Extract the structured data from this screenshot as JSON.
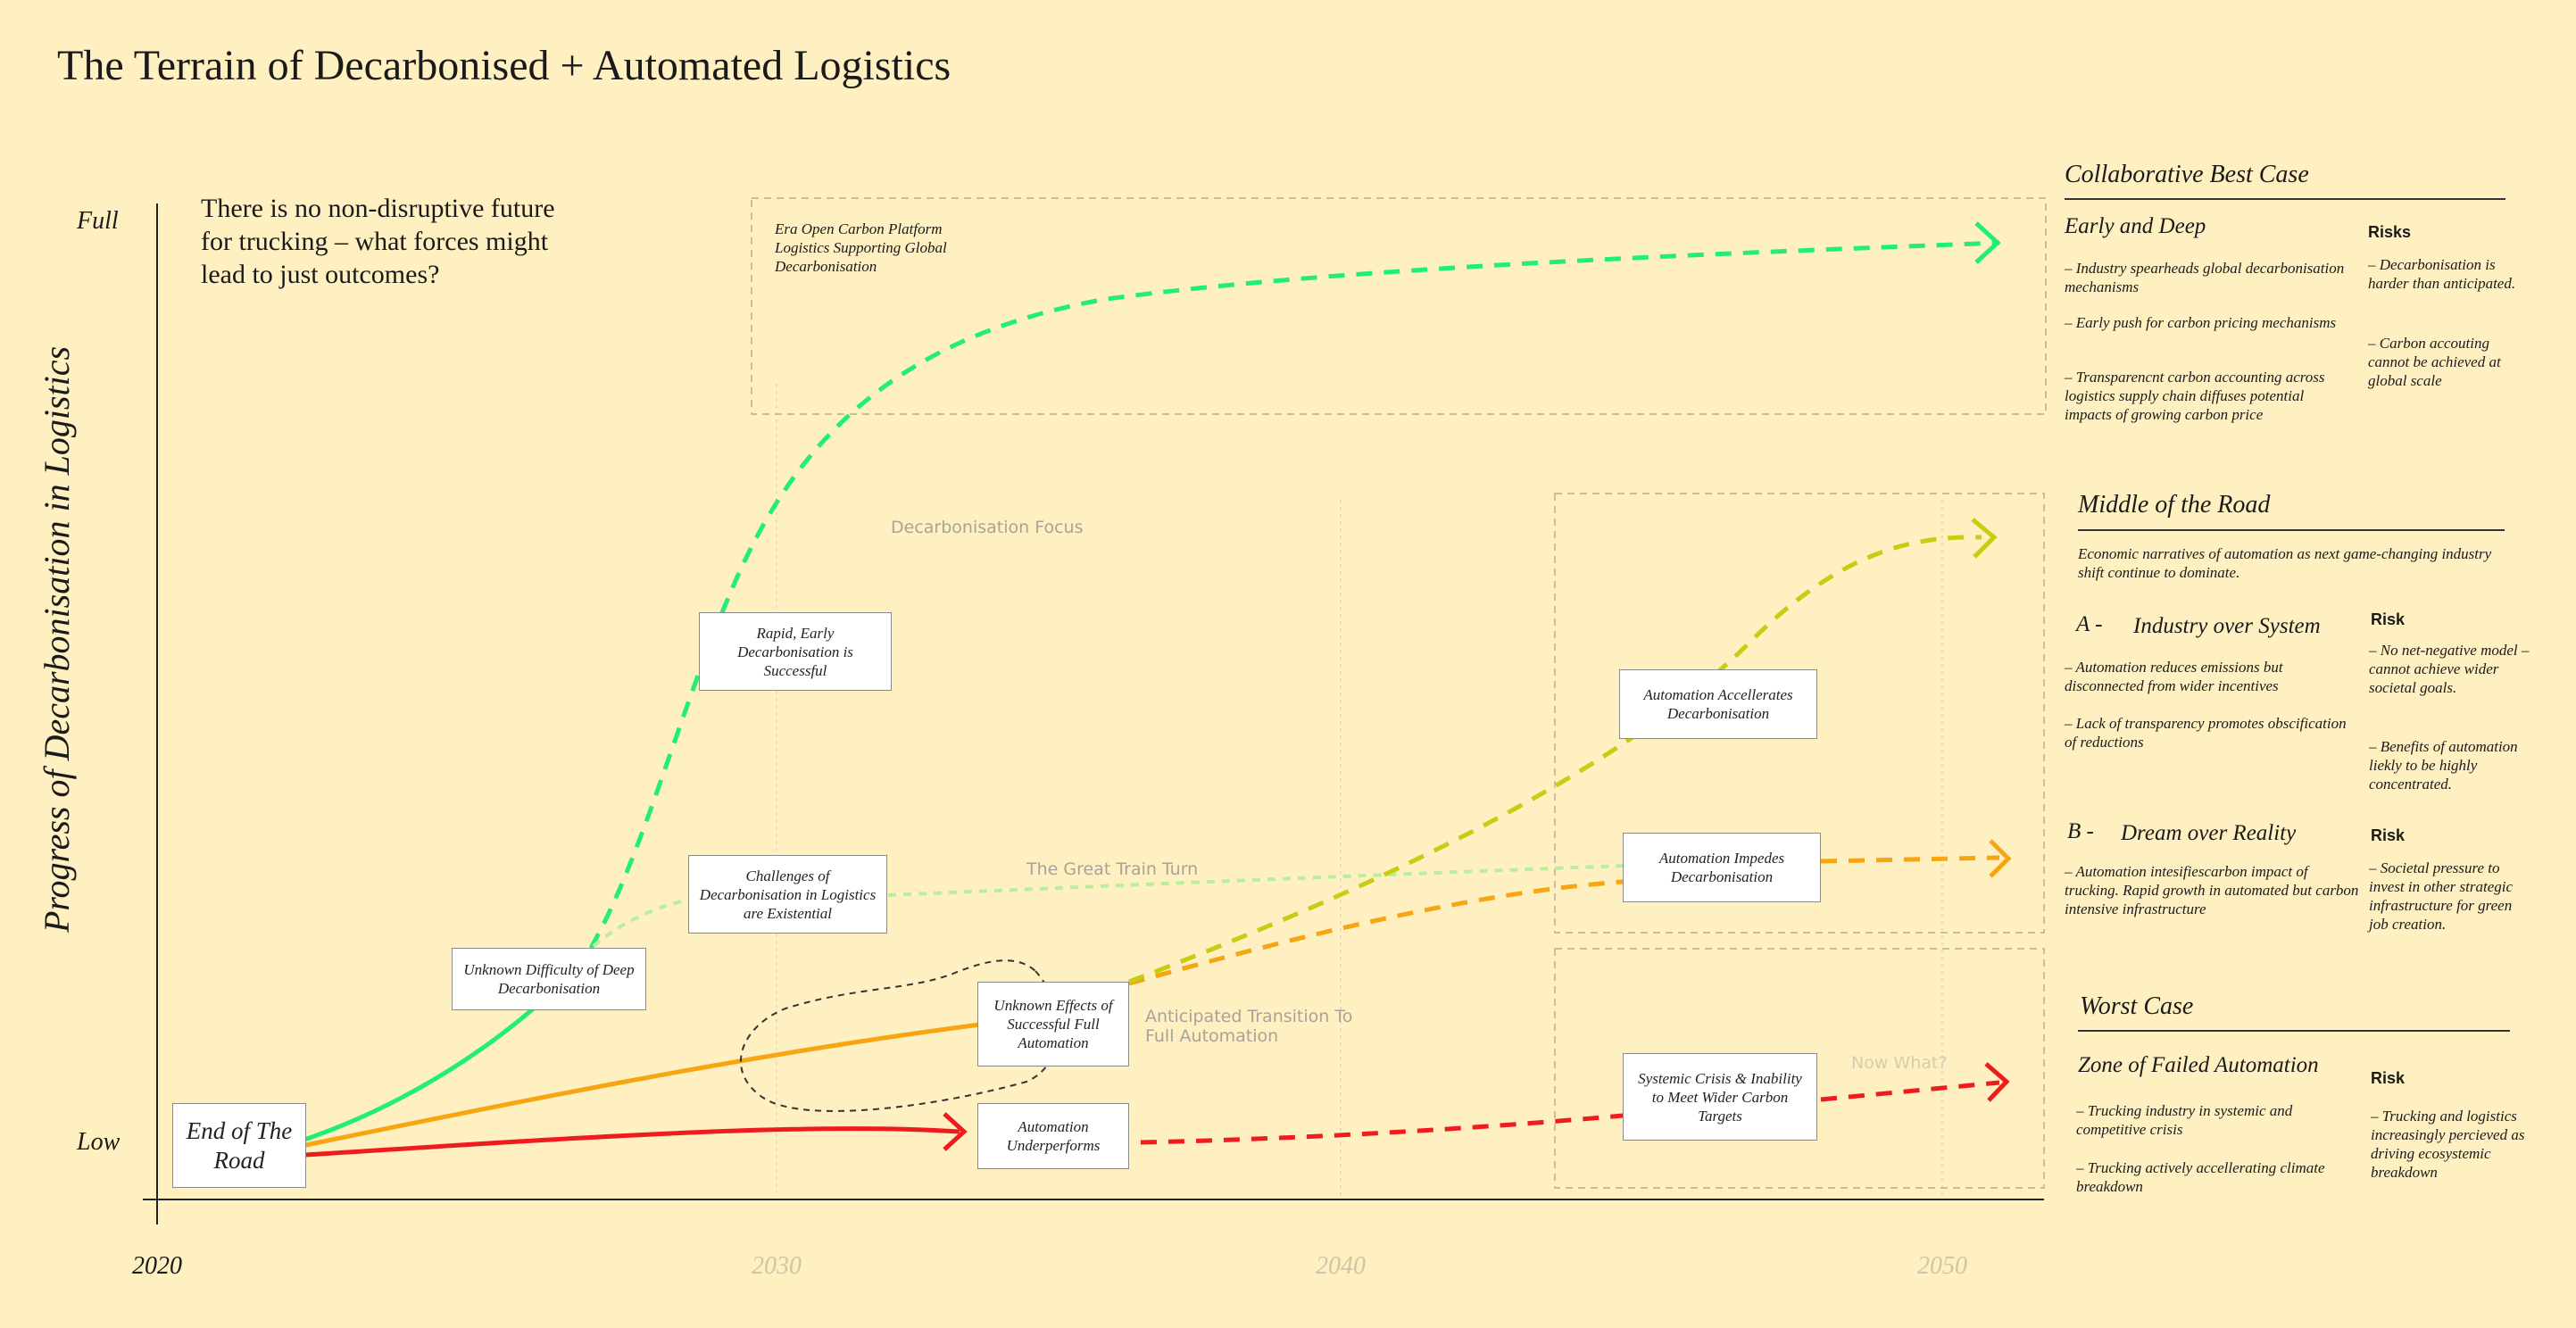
{
  "title": "The Terrain of Decarbonised + Automated Logistics",
  "question": "There is no non-disruptive future for trucking – what forces might lead to just outcomes?",
  "y_axis": {
    "title": "Progress of Decarbonisation in Logistics",
    "full": "Full",
    "low": "Low"
  },
  "x_axis": {
    "years": [
      "2020",
      "2030",
      "2040",
      "2050"
    ]
  },
  "nodes": {
    "end_of_road": "End of The Road",
    "unknown_difficulty": "Unknown Difficulty of Deep Decarbonisation",
    "rapid_early": "Rapid, Early Decarbonisation is Successful",
    "challenges": "Challenges of Decarbonisation in Logistics are Existential",
    "unknown_effects": "Unknown Effects of Successful Full Automation",
    "automation_underperforms": "Automation Underperforms",
    "automation_accellerates": "Automation Accellerates Decarbonisation",
    "automation_impedes": "Automation Impedes Decarbonisation",
    "systemic_crisis": "Systemic Crisis & Inability to Meet Wider Carbon Targets"
  },
  "flow_labels": {
    "decarb_focus": "Decarbonisation Focus",
    "great_train": "The Great Train Turn",
    "anticipated": "Anticipated Transition To Full Automation",
    "now_what": "Now What?"
  },
  "era_text": "Era Open Carbon Platform Logistics Supporting Global Decarbonisation",
  "colors": {
    "background": "#fef0c0",
    "green": "#22ee77",
    "light_green": "#b9ef9a",
    "yellow_green": "#c8cc12",
    "orange": "#f7a510",
    "red": "#ee1c1c"
  },
  "panels": {
    "best": {
      "title": "Collaborative Best Case",
      "subtitle": "Early and Deep",
      "bullets": [
        "– Industry spearheads global decarbonisation mechanisms",
        "– Early push for carbon pricing mechanisms",
        "– Transparencnt carbon accounting across logistics supply chain diffuses potential impacts of growing carbon price"
      ],
      "risk_title": "Risks",
      "risks": [
        "– Decarbonisation is harder than anticipated.",
        "– Carbon accouting cannot be achieved at global scale"
      ]
    },
    "middle": {
      "title": "Middle of the Road",
      "intro": "Economic narratives of automation as next game-changing industry shift continue to dominate.",
      "a_letter": "A -",
      "a_title": "Industry over System",
      "a_bullets": [
        "– Automation reduces emissions but disconnected from wider incentives",
        "– Lack of transparency promotes obscification of reductions"
      ],
      "a_risk_title": "Risk",
      "a_risks": [
        "– No net-negative model – cannot achieve wider societal goals.",
        "– Benefits of automation liekly to be highly concentrated."
      ],
      "b_letter": "B -",
      "b_title": "Dream over Reality",
      "b_bullets": [
        "– Automation intesifiescarbon impact of trucking. Rapid growth in automated but carbon intensive infrastructure"
      ],
      "b_risk_title": "Risk",
      "b_risks": [
        "– Societal pressure to invest in other strategic infrastructure for green job creation."
      ]
    },
    "worst": {
      "title": "Worst Case",
      "subtitle": "Zone of Failed Automation",
      "bullets": [
        "– Trucking industry in systemic and competitive crisis",
        "– Trucking actively accellerating climate breakdown"
      ],
      "risk_title": "Risk",
      "risks": [
        "– Trucking and logistics increasingly percieved as driving ecosystemic breakdown"
      ]
    }
  }
}
